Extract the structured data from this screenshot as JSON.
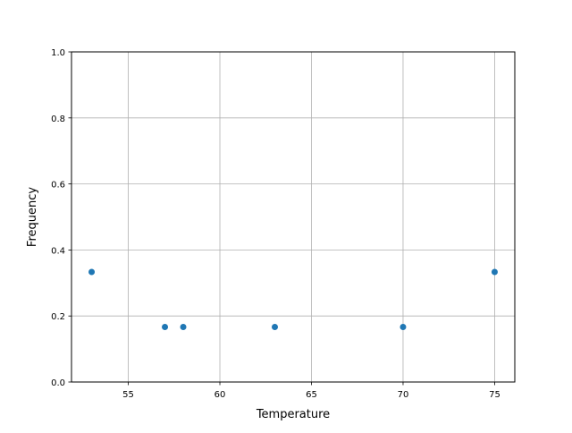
{
  "chart_data": {
    "type": "scatter",
    "title": "",
    "xlabel": "Temperature",
    "ylabel": "Frequency",
    "xlim": [
      51.9,
      76.1
    ],
    "ylim": [
      0,
      1
    ],
    "xticks": [
      55,
      60,
      65,
      70,
      75
    ],
    "xtick_labels": [
      "55",
      "60",
      "65",
      "70",
      "75"
    ],
    "yticks": [
      0,
      0.2,
      0.4,
      0.6,
      0.8,
      1.0
    ],
    "ytick_labels": [
      "0.0",
      "0.2",
      "0.4",
      "0.6",
      "0.8",
      "1.0"
    ],
    "grid": true,
    "marker_color": "#1f77b4",
    "points": [
      {
        "x": 53,
        "y": 0.3333
      },
      {
        "x": 57,
        "y": 0.1667
      },
      {
        "x": 58,
        "y": 0.1667
      },
      {
        "x": 63,
        "y": 0.1667
      },
      {
        "x": 70,
        "y": 0.1667
      },
      {
        "x": 75,
        "y": 0.3333
      }
    ]
  }
}
